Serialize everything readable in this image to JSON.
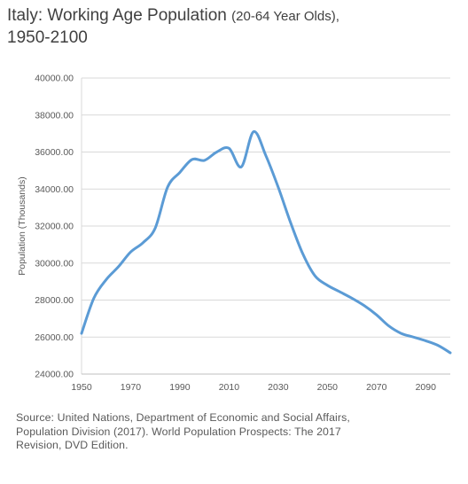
{
  "chart_data": {
    "type": "line",
    "title": "Italy: Working Age Population",
    "subtitle": "(20-64 Year Olds),",
    "title_line2": "1950-2100",
    "xlabel": "",
    "ylabel": "Population (Thousands)",
    "xlim": [
      1950,
      2100
    ],
    "ylim": [
      24000,
      40000
    ],
    "y_ticks": [
      "24000.00",
      "26000.00",
      "28000.00",
      "30000.00",
      "32000.00",
      "34000.00",
      "36000.00",
      "38000.00",
      "40000.00"
    ],
    "x_ticks": [
      "1950",
      "1970",
      "1990",
      "2010",
      "2030",
      "2050",
      "2070",
      "2090"
    ],
    "grid": "horizontal",
    "legend": "none",
    "series_color": "#5B9BD5",
    "x": [
      1950,
      1955,
      1960,
      1965,
      1970,
      1975,
      1980,
      1985,
      1990,
      1995,
      2000,
      2005,
      2010,
      2015,
      2020,
      2025,
      2030,
      2035,
      2040,
      2045,
      2050,
      2055,
      2060,
      2065,
      2070,
      2075,
      2080,
      2085,
      2090,
      2095,
      2100
    ],
    "values": [
      26200,
      28100,
      29100,
      29800,
      30600,
      31100,
      31900,
      34100,
      34900,
      35600,
      35550,
      36000,
      36200,
      35200,
      37100,
      35800,
      34100,
      32200,
      30500,
      29300,
      28800,
      28450,
      28100,
      27700,
      27200,
      26600,
      26200,
      26000,
      25800,
      25550,
      25150
    ]
  },
  "source": "Source: United Nations, Department of Economic and Social Affairs, Population Division (2017). World Population Prospects: The 2017 Revision, DVD Edition."
}
